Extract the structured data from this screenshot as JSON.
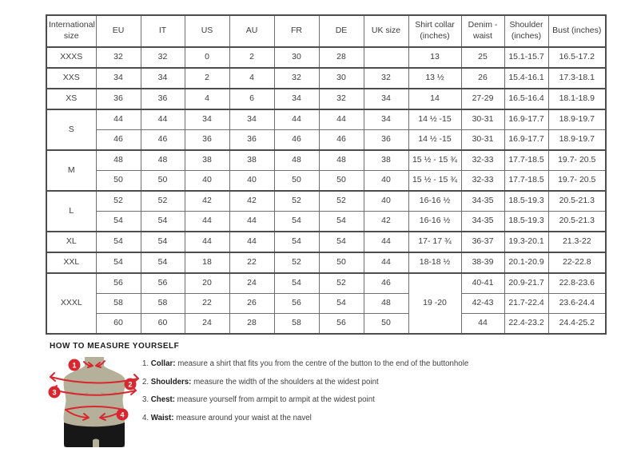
{
  "size_table": {
    "headers": [
      "International size",
      "EU",
      "IT",
      "US",
      "AU",
      "FR",
      "DE",
      "UK size",
      "Shirt collar (inches)",
      "Denim - waist",
      "Shoulder (inches)",
      "Bust (inches)"
    ],
    "rows": [
      {
        "g": true,
        "cells": [
          "XXXS",
          "32",
          "32",
          "0",
          "2",
          "30",
          "28",
          "",
          "13",
          "25",
          "15.1-15.7",
          "16.5-17.2"
        ]
      },
      {
        "g": true,
        "cells": [
          "XXS",
          "34",
          "34",
          "2",
          "4",
          "32",
          "30",
          "32",
          "13 ½",
          "26",
          "15.4-16.1",
          "17.3-18.1"
        ]
      },
      {
        "g": true,
        "cells": [
          "XS",
          "36",
          "36",
          "4",
          "6",
          "34",
          "32",
          "34",
          "14",
          "27-29",
          "16.5-16.4",
          "18.1-18.9"
        ]
      },
      {
        "g": true,
        "cells": [
          {
            "t": "S",
            "rs": 2
          },
          "44",
          "44",
          "34",
          "34",
          "44",
          "44",
          "34",
          "14 ½ -15",
          "30-31",
          "16.9-17.7",
          "18.9-19.7"
        ]
      },
      {
        "cells": [
          "46",
          "46",
          "36",
          "36",
          "46",
          "46",
          "36",
          "14 ½ -15",
          "30-31",
          "16.9-17.7",
          "18.9-19.7"
        ]
      },
      {
        "g": true,
        "cells": [
          {
            "t": "M",
            "rs": 2
          },
          "48",
          "48",
          "38",
          "38",
          "48",
          "48",
          "38",
          "15 ½ - 15 ¾",
          "32-33",
          "17.7-18.5",
          "19.7- 20.5"
        ]
      },
      {
        "cells": [
          "50",
          "50",
          "40",
          "40",
          "50",
          "50",
          "40",
          "15 ½ - 15 ¾",
          "32-33",
          "17.7-18.5",
          "19.7- 20.5"
        ]
      },
      {
        "g": true,
        "cells": [
          {
            "t": "L",
            "rs": 2
          },
          "52",
          "52",
          "42",
          "42",
          "52",
          "52",
          "40",
          "16-16 ½",
          "34-35",
          "18.5-19.3",
          "20.5-21.3"
        ]
      },
      {
        "cells": [
          "54",
          "54",
          "44",
          "44",
          "54",
          "54",
          "42",
          "16-16 ½",
          "34-35",
          "18.5-19.3",
          "20.5-21.3"
        ]
      },
      {
        "g": true,
        "cells": [
          "XL",
          "54",
          "54",
          "44",
          "44",
          "54",
          "54",
          "44",
          "17- 17 ¾",
          "36-37",
          "19.3-20.1",
          "21.3-22"
        ]
      },
      {
        "g": true,
        "cells": [
          "XXL",
          "54",
          "54",
          "18",
          "22",
          "52",
          "50",
          "44",
          "18-18 ½",
          "38-39",
          "20.1-20.9",
          "22-22.8"
        ]
      },
      {
        "g": true,
        "cells": [
          {
            "t": "XXXL",
            "rs": 3
          },
          "56",
          "56",
          "20",
          "24",
          "54",
          "52",
          "46",
          {
            "t": "19 -20",
            "rs": 3
          },
          "40-41",
          "20.9-21.7",
          "22.8-23.6"
        ]
      },
      {
        "cells": [
          "58",
          "58",
          "22",
          "26",
          "56",
          "54",
          "48",
          "42-43",
          "21.7-22.4",
          "23.6-24.4"
        ]
      },
      {
        "cells": [
          "60",
          "60",
          "24",
          "28",
          "58",
          "56",
          "50",
          "44",
          "22.4-23.2",
          "24.4-25.2"
        ]
      }
    ]
  },
  "measure": {
    "heading": "HOW TO MEASURE YOURSELF",
    "items": [
      {
        "num": "1.",
        "label": "Collar:",
        "text": "measure a shirt that fits you from the centre of the button to the end of the buttonhole"
      },
      {
        "num": "2.",
        "label": "Shoulders:",
        "text": "measure the width of the shoulders at the widest point"
      },
      {
        "num": "3.",
        "label": "Chest:",
        "text": "measure yourself from armpit to armpit at the widest point"
      },
      {
        "num": "4.",
        "label": "Waist:",
        "text": "measure around your waist at the navel"
      }
    ],
    "badges": [
      "1",
      "2",
      "3",
      "4"
    ]
  },
  "colors": {
    "accent_red": "#d7282f",
    "mannequin": "#b5b099",
    "shorts": "#171717",
    "table_border_dark": "#4d4d4d",
    "table_border_light": "#6e6e6e",
    "text": "#3c3c3c"
  }
}
